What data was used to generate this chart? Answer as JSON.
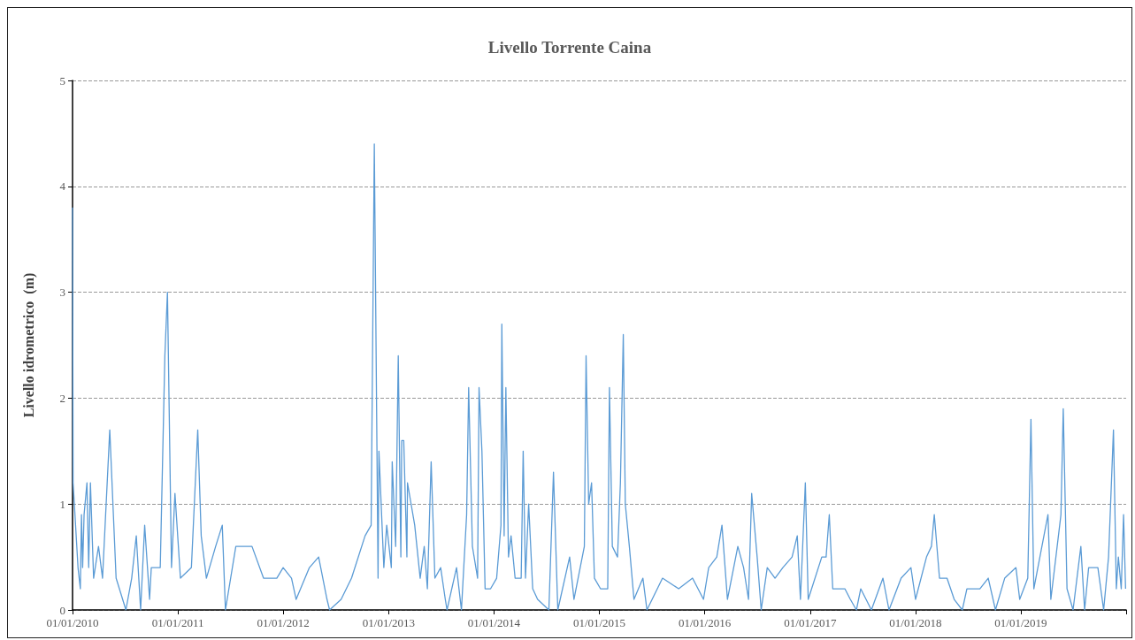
{
  "chart_data": {
    "type": "line",
    "title": "Livello Torrente Caina",
    "ylabel": "Livello idrometrico  (m)",
    "xlim": [
      "2010-01-01",
      "2020-01-01"
    ],
    "xticks": [
      {
        "value": "2010-01-01",
        "label": "01/01/2010"
      },
      {
        "value": "2011-01-01",
        "label": "01/01/2011"
      },
      {
        "value": "2012-01-01",
        "label": "01/01/2012"
      },
      {
        "value": "2013-01-01",
        "label": "01/01/2013"
      },
      {
        "value": "2014-01-01",
        "label": "01/01/2014"
      },
      {
        "value": "2015-01-01",
        "label": "01/01/2015"
      },
      {
        "value": "2016-01-01",
        "label": "01/01/2016"
      },
      {
        "value": "2017-01-01",
        "label": "01/01/2017"
      },
      {
        "value": "2018-01-01",
        "label": "01/01/2018"
      },
      {
        "value": "2019-01-01",
        "label": "01/01/2019"
      },
      {
        "value": "2020-01-01",
        "label": null
      }
    ],
    "ylim": [
      0,
      5
    ],
    "yticks": [
      0,
      1,
      2,
      3,
      4,
      5
    ],
    "grid": "y",
    "marker": "none",
    "line_style": "solid",
    "series": [
      {
        "color": "#5b9bd5",
        "x": [
          "2010-01-01",
          "2010-01-03",
          "2010-01-20",
          "2010-01-28",
          "2010-02-01",
          "2010-02-05",
          "2010-02-10",
          "2010-02-20",
          "2010-02-26",
          "2010-03-04",
          "2010-03-15",
          "2010-04-01",
          "2010-04-15",
          "2010-05-10",
          "2010-06-01",
          "2010-07-05",
          "2010-07-25",
          "2010-08-10",
          "2010-08-25",
          "2010-09-08",
          "2010-09-25",
          "2010-10-01",
          "2010-11-01",
          "2010-11-17",
          "2010-11-26",
          "2010-12-10",
          "2010-12-22",
          "2011-01-10",
          "2011-02-17",
          "2011-03-11",
          "2011-03-23",
          "2011-04-10",
          "2011-05-12",
          "2011-06-04",
          "2011-06-15",
          "2011-07-21",
          "2011-09-15",
          "2011-10-25",
          "2011-12-10",
          "2012-01-01",
          "2012-01-30",
          "2012-02-15",
          "2012-04-01",
          "2012-05-03",
          "2012-06-01",
          "2012-06-10",
          "2012-07-20",
          "2012-08-25",
          "2012-10-11",
          "2012-11-01",
          "2012-11-12",
          "2012-11-25",
          "2012-11-28",
          "2012-12-15",
          "2012-12-25",
          "2013-01-10",
          "2013-01-13",
          "2013-01-25",
          "2013-02-03",
          "2013-02-12",
          "2013-02-15",
          "2013-02-22",
          "2013-03-05",
          "2013-03-07",
          "2013-04-01",
          "2013-04-20",
          "2013-05-04",
          "2013-05-15",
          "2013-05-28",
          "2013-06-10",
          "2013-06-30",
          "2013-07-16",
          "2013-07-22",
          "2013-08-24",
          "2013-09-10",
          "2013-09-28",
          "2013-10-05",
          "2013-10-18",
          "2013-11-05",
          "2013-11-10",
          "2013-11-20",
          "2013-12-01",
          "2013-12-20",
          "2014-01-10",
          "2014-01-25",
          "2014-01-28",
          "2014-02-05",
          "2014-02-11",
          "2014-02-20",
          "2014-03-01",
          "2014-03-15",
          "2014-04-05",
          "2014-04-12",
          "2014-04-20",
          "2014-05-01",
          "2014-05-15",
          "2014-06-01",
          "2014-07-10",
          "2014-07-26",
          "2014-08-10",
          "2014-09-20",
          "2014-10-05",
          "2014-11-10",
          "2014-11-16",
          "2014-11-25",
          "2014-12-05",
          "2014-12-15",
          "2015-01-05",
          "2015-01-30",
          "2015-02-05",
          "2015-02-15",
          "2015-03-05",
          "2015-03-15",
          "2015-03-25",
          "2015-04-01",
          "2015-04-15",
          "2015-05-01",
          "2015-06-01",
          "2015-06-15",
          "2015-08-08",
          "2015-10-03",
          "2015-11-20",
          "2015-12-28",
          "2016-01-15",
          "2016-02-12",
          "2016-03-01",
          "2016-03-20",
          "2016-04-25",
          "2016-05-15",
          "2016-06-01",
          "2016-06-12",
          "2016-07-01",
          "2016-07-15",
          "2016-08-05",
          "2016-09-01",
          "2016-09-28",
          "2016-10-30",
          "2016-11-17",
          "2016-11-28",
          "2016-12-15",
          "2016-12-25",
          "2017-02-10",
          "2017-02-25",
          "2017-03-08",
          "2017-03-20",
          "2017-05-01",
          "2017-05-20",
          "2017-06-10",
          "2017-06-25",
          "2017-08-01",
          "2017-09-10",
          "2017-10-01",
          "2017-11-12",
          "2017-12-16",
          "2018-01-01",
          "2018-02-08",
          "2018-02-25",
          "2018-03-07",
          "2018-03-25",
          "2018-04-20",
          "2018-05-15",
          "2018-06-12",
          "2018-06-28",
          "2018-08-12",
          "2018-09-10",
          "2018-10-05",
          "2018-11-06",
          "2018-12-15",
          "2018-12-28",
          "2019-01-25",
          "2019-02-05",
          "2019-02-15",
          "2019-04-05",
          "2019-04-15",
          "2019-05-20",
          "2019-05-28",
          "2019-06-10",
          "2019-07-01",
          "2019-07-28",
          "2019-08-10",
          "2019-08-24",
          "2019-09-25",
          "2019-10-15",
          "2019-11-01",
          "2019-11-18",
          "2019-11-28",
          "2019-12-05",
          "2019-12-15",
          "2019-12-23",
          "2019-12-30"
        ],
        "values": [
          3.8,
          1.2,
          0.4,
          0.2,
          0.9,
          0.4,
          0.9,
          1.2,
          0.4,
          1.2,
          0.3,
          0.6,
          0.3,
          1.7,
          0.3,
          0.0,
          0.3,
          0.7,
          0.0,
          0.8,
          0.1,
          0.4,
          0.4,
          2.4,
          3.0,
          0.4,
          1.1,
          0.3,
          0.4,
          1.7,
          0.7,
          0.3,
          0.6,
          0.8,
          0.0,
          0.6,
          0.6,
          0.3,
          0.3,
          0.4,
          0.3,
          0.1,
          0.4,
          0.5,
          0.1,
          0.0,
          0.1,
          0.3,
          0.7,
          0.8,
          4.4,
          0.3,
          1.5,
          0.4,
          0.8,
          0.4,
          1.4,
          0.6,
          2.4,
          0.5,
          1.6,
          1.6,
          0.5,
          1.2,
          0.8,
          0.3,
          0.6,
          0.2,
          1.4,
          0.3,
          0.4,
          0.1,
          0.0,
          0.4,
          0.0,
          0.9,
          2.1,
          0.6,
          0.3,
          2.1,
          1.5,
          0.2,
          0.2,
          0.3,
          0.8,
          2.7,
          0.7,
          2.1,
          0.5,
          0.7,
          0.3,
          0.3,
          1.5,
          0.3,
          1.0,
          0.2,
          0.1,
          0.0,
          1.3,
          0.0,
          0.5,
          0.1,
          0.6,
          2.4,
          1.0,
          1.2,
          0.3,
          0.2,
          0.2,
          2.1,
          0.6,
          0.5,
          1.2,
          2.6,
          1.0,
          0.6,
          0.1,
          0.3,
          0.0,
          0.3,
          0.2,
          0.3,
          0.1,
          0.4,
          0.5,
          0.8,
          0.1,
          0.6,
          0.4,
          0.1,
          1.1,
          0.5,
          0.0,
          0.4,
          0.3,
          0.4,
          0.5,
          0.7,
          0.1,
          1.2,
          0.1,
          0.5,
          0.5,
          0.9,
          0.2,
          0.2,
          0.1,
          0.0,
          0.2,
          0.0,
          0.3,
          0.0,
          0.3,
          0.4,
          0.1,
          0.5,
          0.6,
          0.9,
          0.3,
          0.3,
          0.1,
          0.0,
          0.2,
          0.2,
          0.3,
          0.0,
          0.3,
          0.4,
          0.1,
          0.3,
          1.8,
          0.2,
          0.9,
          0.1,
          0.9,
          1.9,
          0.2,
          0.0,
          0.6,
          0.0,
          0.4,
          0.4,
          0.0,
          0.5,
          1.7,
          0.2,
          0.5,
          0.2,
          0.9,
          0.2
        ]
      }
    ]
  }
}
